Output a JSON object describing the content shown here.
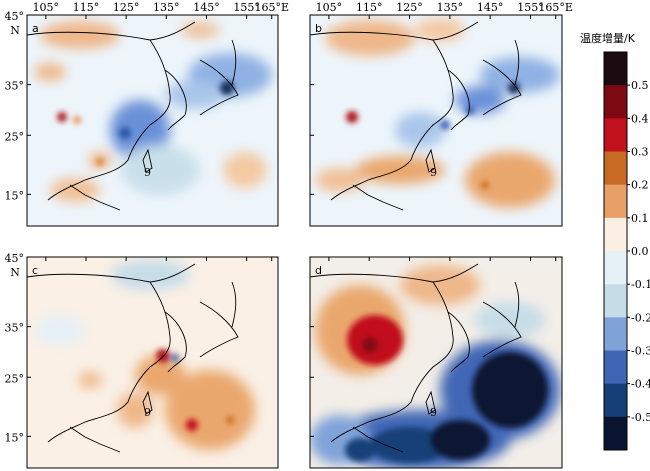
{
  "x_tick_labels": [
    "105°",
    "115°",
    "125°",
    "135°",
    "145°",
    "155°",
    "165°E"
  ],
  "y_tick_labels": [
    "45°",
    "35°",
    "25°",
    "15°"
  ],
  "y_axis_letter": "N",
  "panels": [
    {
      "letter": "a"
    },
    {
      "letter": "b"
    },
    {
      "letter": "c"
    },
    {
      "letter": "d"
    }
  ],
  "colorbar": {
    "title": "温度增量/K",
    "tick_labels": [
      "0.5",
      "0.4",
      "0.3",
      "0.2",
      "0.1",
      "0.0",
      "-0.1",
      "-0.2",
      "-0.3",
      "-0.4",
      "-0.5"
    ],
    "colors": [
      "#1b0a10",
      "#7d0a12",
      "#c1111c",
      "#c96a24",
      "#e8a066",
      "#fbeee2",
      "#e5f0f7",
      "#c6dde8",
      "#7fa3d9",
      "#3f66b5",
      "#173f77",
      "#0a1330"
    ]
  },
  "typhoon_symbol": "9"
}
